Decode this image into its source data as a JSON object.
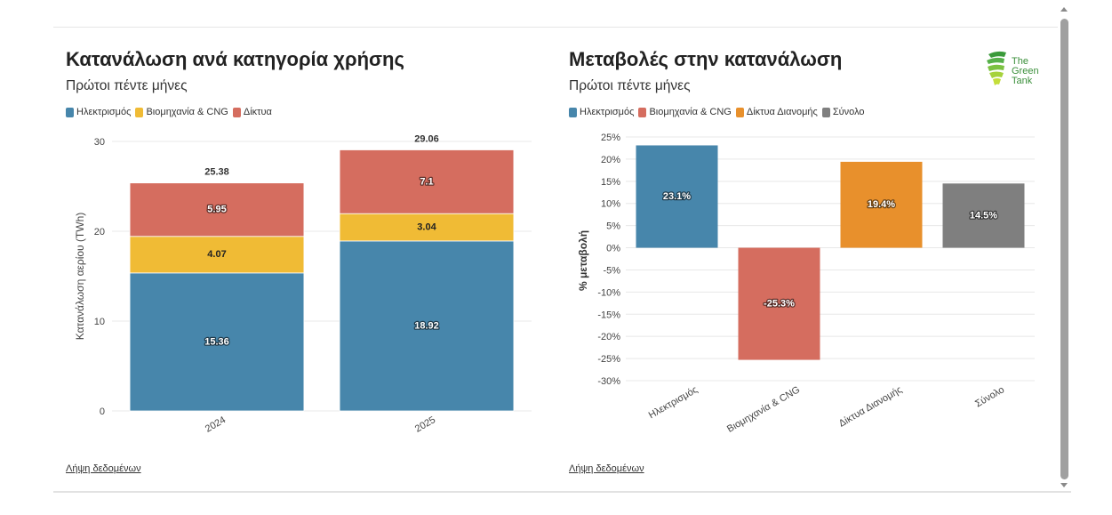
{
  "colors": {
    "electricity": "#4786ab",
    "industry": "#f0bb35",
    "networks": "#d56d5f",
    "distribution": "#e8902c",
    "total": "#7f7f7f",
    "grid": "#e8e8e8"
  },
  "left": {
    "title": "Κατανάλωση ανά κατηγορία χρήσης",
    "subtitle": "Πρώτοι πέντε μήνες",
    "legend": [
      "Ηλεκτρισμός",
      "Βιομηχανία & CNG",
      "Δίκτυα"
    ],
    "download": "Λήψη δεδομένων"
  },
  "right": {
    "title": "Μεταβολές στην κατανάλωση",
    "subtitle": "Πρώτοι πέντε μήνες",
    "legend": [
      "Ηλεκτρισμός",
      "Βιομηχανία & CNG",
      "Δίκτυα Διανομής",
      "Σύνολο"
    ],
    "download": "Λήψη δεδομένων"
  },
  "logo": {
    "line1": "The",
    "line2": "Green",
    "line3": "Tank",
    "icon": "green-tank-logo-icon"
  },
  "chart_data": [
    {
      "type": "bar",
      "stacked": true,
      "categories": [
        "2024",
        "2025"
      ],
      "series": [
        {
          "name": "Ηλεκτρισμός",
          "values": [
            15.36,
            18.92
          ]
        },
        {
          "name": "Βιομηχανία & CNG",
          "values": [
            4.07,
            3.04
          ]
        },
        {
          "name": "Δίκτυα",
          "values": [
            5.95,
            7.1
          ]
        }
      ],
      "totals": [
        25.38,
        29.06
      ],
      "title": "Κατανάλωση ανά κατηγορία χρήσης",
      "subtitle": "Πρώτοι πέντε μήνες",
      "xlabel": "",
      "ylabel": "Κατανάλωση αερίου (TWh)",
      "ylim": [
        0,
        30
      ],
      "yticks": [
        0,
        10,
        20,
        30
      ],
      "grid": true,
      "legend": "top-left"
    },
    {
      "type": "bar",
      "categories": [
        "Ηλεκτρισμός",
        "Βιομηχανία & CNG",
        "Δίκτυα Διανομής",
        "Σύνολο"
      ],
      "values": [
        23.1,
        -25.3,
        19.4,
        14.5
      ],
      "labels": [
        "23.1%",
        "-25.3%",
        "19.4%",
        "14.5%"
      ],
      "title": "Μεταβολές στην κατανάλωση",
      "subtitle": "Πρώτοι πέντε μήνες",
      "xlabel": "",
      "ylabel": "% μεταβολή",
      "ylim": [
        -30,
        25
      ],
      "yticks": [
        25,
        20,
        15,
        10,
        5,
        0,
        -5,
        -10,
        -15,
        -20,
        -25,
        -30
      ],
      "ytick_labels": [
        "25%",
        "20%",
        "15%",
        "10%",
        "5%",
        "0%",
        "-5%",
        "-10%",
        "-15%",
        "-20%",
        "-25%",
        "-30%"
      ],
      "grid": true,
      "legend": "top-left"
    }
  ]
}
